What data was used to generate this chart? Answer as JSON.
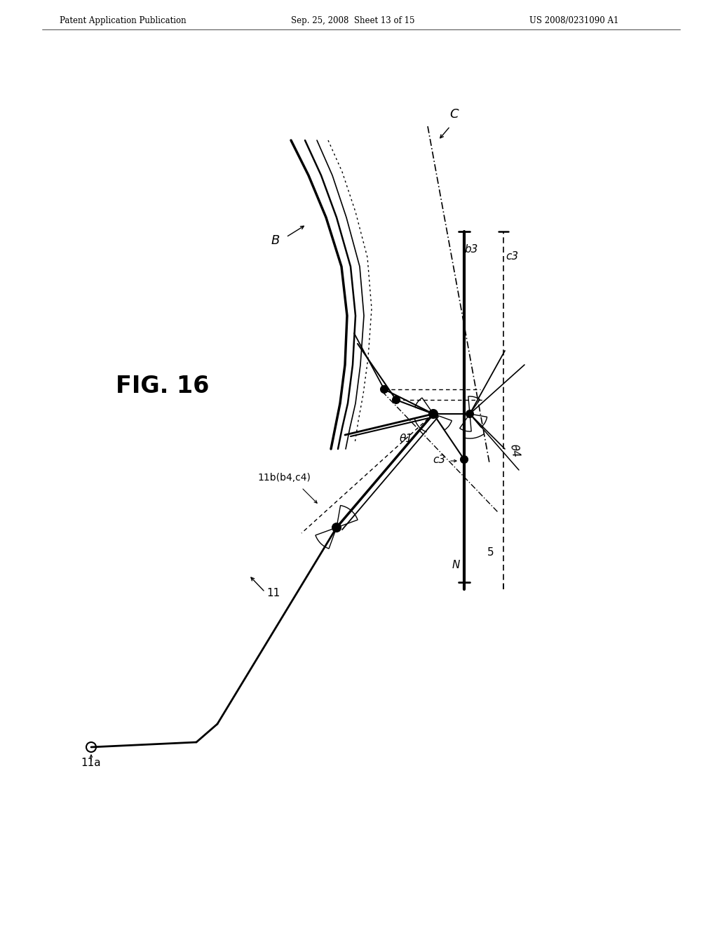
{
  "header_left": "Patent Application Publication",
  "header_mid": "Sep. 25, 2008  Sheet 13 of 15",
  "header_right": "US 2008/0231090 A1",
  "fig_label": "FIG. 16",
  "bg_color": "#ffffff",
  "text_color": "#000000"
}
